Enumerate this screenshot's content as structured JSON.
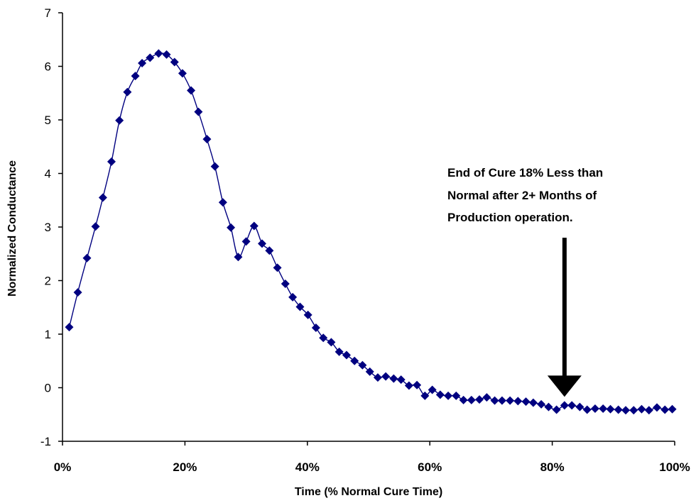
{
  "chart_data": {
    "type": "scatter",
    "title": "",
    "xlabel": "Time (% Normal Cure Time)",
    "ylabel": "Normalized Conductance",
    "xlim": [
      0,
      100
    ],
    "ylim": [
      -1,
      7
    ],
    "x_tick_labels": [
      "0%",
      "20%",
      "40%",
      "60%",
      "80%",
      "100%"
    ],
    "y_tick_labels": [
      "-1",
      "0",
      "1",
      "2",
      "3",
      "4",
      "5",
      "6",
      "7"
    ],
    "grid": false,
    "legend": "none",
    "marker": "diamond",
    "connected": true,
    "series_color": "#000080",
    "series": [
      {
        "x": [
          1.1,
          2.5,
          4.0,
          5.4,
          6.6,
          8.0,
          9.3,
          10.6,
          11.9,
          13.0,
          14.3,
          15.7,
          17.0,
          18.3,
          19.6,
          21.0,
          22.2,
          23.6,
          24.9,
          26.2,
          27.5,
          28.7,
          30.0,
          31.3,
          32.6,
          33.8,
          35.1,
          36.4,
          37.6,
          38.8,
          40.1,
          41.4,
          42.6,
          43.9,
          45.2,
          46.4,
          47.7,
          49.0,
          50.2,
          51.5,
          52.8,
          54.1,
          55.3,
          56.6,
          57.9,
          59.2,
          60.4,
          61.7,
          63.0,
          64.3,
          65.5,
          66.8,
          68.1,
          69.3,
          70.6,
          71.8,
          73.1,
          74.4,
          75.7,
          76.9,
          78.2,
          79.4,
          80.7,
          82.0,
          83.2,
          84.5,
          85.7,
          87.0,
          88.3,
          89.5,
          90.8,
          92.0,
          93.3,
          94.6,
          95.8,
          97.1,
          98.4,
          99.6
        ],
        "y": [
          1.13,
          1.78,
          2.42,
          3.01,
          3.55,
          4.22,
          4.99,
          5.52,
          5.82,
          6.06,
          6.16,
          6.24,
          6.22,
          6.08,
          5.87,
          5.55,
          5.15,
          4.64,
          4.13,
          3.46,
          2.99,
          2.44,
          2.73,
          3.02,
          2.69,
          2.56,
          2.24,
          1.94,
          1.69,
          1.51,
          1.36,
          1.12,
          0.93,
          0.85,
          0.67,
          0.61,
          0.5,
          0.42,
          0.3,
          0.19,
          0.21,
          0.17,
          0.15,
          0.04,
          0.05,
          -0.15,
          -0.04,
          -0.13,
          -0.15,
          -0.15,
          -0.23,
          -0.23,
          -0.22,
          -0.18,
          -0.24,
          -0.24,
          -0.24,
          -0.25,
          -0.26,
          -0.28,
          -0.31,
          -0.36,
          -0.41,
          -0.33,
          -0.33,
          -0.36,
          -0.41,
          -0.39,
          -0.39,
          -0.4,
          -0.41,
          -0.42,
          -0.42,
          -0.4,
          -0.42,
          -0.37,
          -0.41,
          -0.4
        ]
      }
    ],
    "annotation": {
      "lines": [
        "End of Cure 18% Less than",
        "Normal after 2+ Months of",
        "Production operation."
      ],
      "arrow_x": 82,
      "arrow_tip_y": -0.17,
      "arrow_tail_y": 2.8
    }
  }
}
